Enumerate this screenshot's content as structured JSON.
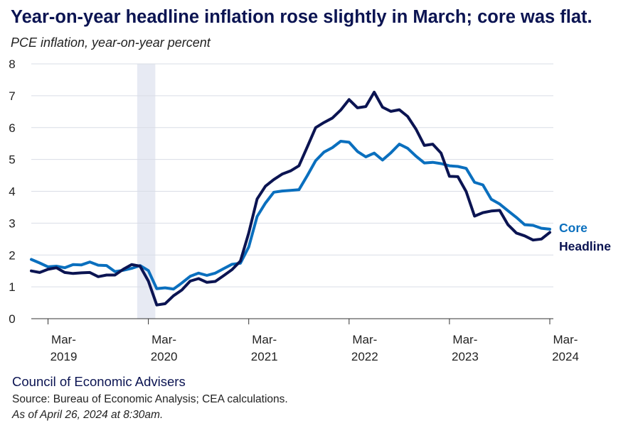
{
  "header": {
    "title": "Year-on-year headline inflation rose slightly in March; core was flat.",
    "subtitle": "PCE inflation, year-on-year percent"
  },
  "footer": {
    "org": "Council of Economic Advisers",
    "source": "Source: Bureau of Economic Analysis; CEA calculations.",
    "as_of": "As of April 26, 2024 at 8:30am."
  },
  "colors": {
    "core": "#0a6fbe",
    "headline": "#0b1452",
    "recession": "#e7eaf3",
    "grid": "#d9dde6"
  },
  "chart_data": {
    "type": "line",
    "title": "Year-on-year headline inflation rose slightly in March; core was flat.",
    "subtitle": "PCE inflation, year-on-year percent",
    "ylim": [
      0,
      8
    ],
    "yticks": [
      "0",
      "1",
      "2",
      "3",
      "4",
      "5",
      "6",
      "7",
      "8"
    ],
    "xticks": [
      {
        "month": "Mar-",
        "year": "2019"
      },
      {
        "month": "Mar-",
        "year": "2020"
      },
      {
        "month": "Mar-",
        "year": "2021"
      },
      {
        "month": "Mar-",
        "year": "2022"
      },
      {
        "month": "Mar-",
        "year": "2023"
      },
      {
        "month": "Mar-",
        "year": "2024"
      }
    ],
    "x_range": [
      "2019-01",
      "2024-03"
    ],
    "recession_band": [
      "2020-02",
      "2020-04"
    ],
    "grid": true,
    "legend": "direct labels at right end of lines",
    "series": [
      {
        "name": "Core",
        "values": [
          1.86,
          1.75,
          1.63,
          1.65,
          1.6,
          1.7,
          1.69,
          1.78,
          1.68,
          1.67,
          1.48,
          1.52,
          1.58,
          1.67,
          1.51,
          0.94,
          0.97,
          0.93,
          1.12,
          1.33,
          1.43,
          1.36,
          1.43,
          1.57,
          1.71,
          1.74,
          2.25,
          3.21,
          3.63,
          3.97,
          4.01,
          4.03,
          4.05,
          4.49,
          4.96,
          5.23,
          5.37,
          5.57,
          5.54,
          5.25,
          5.08,
          5.2,
          4.98,
          5.21,
          5.48,
          5.35,
          5.1,
          4.89,
          4.91,
          4.87,
          4.8,
          4.78,
          4.72,
          4.28,
          4.2,
          3.75,
          3.6,
          3.39,
          3.18,
          2.95,
          2.93,
          2.84,
          2.81
        ]
      },
      {
        "name": "Headline",
        "values": [
          1.5,
          1.45,
          1.55,
          1.6,
          1.45,
          1.42,
          1.44,
          1.45,
          1.32,
          1.37,
          1.37,
          1.55,
          1.7,
          1.65,
          1.18,
          0.43,
          0.47,
          0.72,
          0.9,
          1.18,
          1.26,
          1.14,
          1.17,
          1.35,
          1.54,
          1.81,
          2.69,
          3.76,
          4.16,
          4.37,
          4.54,
          4.64,
          4.8,
          5.39,
          6.0,
          6.16,
          6.3,
          6.55,
          6.88,
          6.62,
          6.66,
          7.11,
          6.64,
          6.51,
          6.56,
          6.35,
          5.95,
          5.44,
          5.48,
          5.2,
          4.47,
          4.46,
          3.99,
          3.22,
          3.33,
          3.38,
          3.4,
          2.95,
          2.69,
          2.6,
          2.47,
          2.5,
          2.71
        ]
      }
    ]
  }
}
